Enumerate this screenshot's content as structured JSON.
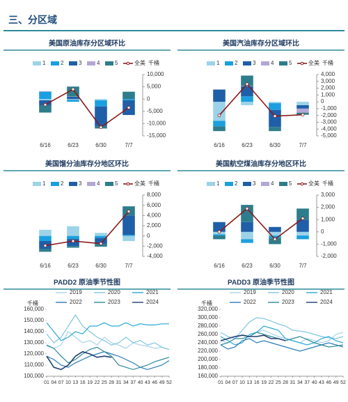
{
  "header": {
    "title": "三、分区域"
  },
  "chart_data": [
    {
      "type": "bar",
      "title": "美国原油库存分区域环比",
      "unit": "千桶",
      "categories": [
        "6/16",
        "6/23",
        "6/30",
        "7/7"
      ],
      "series": [
        {
          "name": "1",
          "color": "#9dd3e8",
          "values": [
            -500,
            -300,
            -500,
            0
          ]
        },
        {
          "name": "2",
          "color": "#1aa0e0",
          "values": [
            3000,
            -800,
            -2500,
            -500
          ]
        },
        {
          "name": "3",
          "color": "#1f5fa8",
          "values": [
            -2000,
            1000,
            -8000,
            -6000
          ]
        },
        {
          "name": "4",
          "color": "#b4a7d6",
          "values": [
            200,
            100,
            0,
            0
          ]
        },
        {
          "name": "5",
          "color": "#2e7d8c",
          "values": [
            -3000,
            4000,
            -1000,
            3000
          ]
        },
        {
          "name": "全美",
          "type": "line",
          "color": "#8b1a1a",
          "values": [
            -2300,
            4000,
            -11500,
            -3500
          ]
        }
      ],
      "ylim": [
        -15000,
        10000
      ],
      "yticks": [
        {
          "value": -15000,
          "label": "-15,000"
        },
        {
          "value": -10000,
          "label": "-10,000"
        },
        {
          "value": -5000,
          "label": "-5,000"
        },
        0,
        {
          "value": 5000,
          "label": "5,000"
        },
        {
          "value": 10000,
          "label": "10,000"
        }
      ]
    },
    {
      "type": "bar",
      "title": "美国汽油库存分区域环比",
      "unit": "千桶",
      "categories": [
        "6/16",
        "6/23",
        "6/30",
        "7/7"
      ],
      "series": [
        {
          "name": "1",
          "color": "#9dd3e8",
          "values": [
            -2800,
            -500,
            -200,
            -500
          ]
        },
        {
          "name": "2",
          "color": "#1aa0e0",
          "values": [
            -800,
            800,
            -1000,
            0
          ]
        },
        {
          "name": "3",
          "color": "#1f5fa8",
          "values": [
            1800,
            1500,
            -2500,
            -500
          ]
        },
        {
          "name": "4",
          "color": "#b4a7d6",
          "values": [
            0,
            50,
            0,
            -600
          ]
        },
        {
          "name": "5",
          "color": "#2e7d8c",
          "values": [
            -700,
            1500,
            -600,
            -300
          ]
        },
        {
          "name": "全美",
          "type": "line",
          "color": "#8b1a1a",
          "values": [
            -2000,
            2600,
            -2100,
            -1900
          ]
        }
      ],
      "ylim": [
        -5000,
        4000
      ],
      "yticks": [
        {
          "value": -5000,
          "label": "-5,000"
        },
        {
          "value": -4000,
          "label": "-4,000"
        },
        {
          "value": -3000,
          "label": "-3,000"
        },
        {
          "value": -2000,
          "label": "-2,000"
        },
        {
          "value": -1000,
          "label": "-1,000"
        },
        0,
        {
          "value": 1000,
          "label": "1,000"
        },
        {
          "value": 2000,
          "label": "2,000"
        },
        {
          "value": 3000,
          "label": "3,000"
        },
        {
          "value": 4000,
          "label": "4,000"
        }
      ]
    },
    {
      "type": "bar",
      "title": "美国馏分油库存分地区环比",
      "unit": "千桶",
      "categories": [
        "6/16",
        "6/23",
        "6/30",
        "7/7"
      ],
      "series": [
        {
          "name": "1",
          "color": "#9dd3e8",
          "values": [
            1200,
            1900,
            600,
            -1000
          ]
        },
        {
          "name": "2",
          "color": "#1aa0e0",
          "values": [
            -1000,
            -600,
            -400,
            200
          ]
        },
        {
          "name": "3",
          "color": "#1f5fa8",
          "values": [
            -1500,
            -1400,
            -1200,
            3800
          ]
        },
        {
          "name": "4",
          "color": "#b4a7d6",
          "values": [
            0,
            0,
            0,
            0
          ]
        },
        {
          "name": "5",
          "color": "#2e7d8c",
          "values": [
            -600,
            -300,
            -500,
            1800
          ]
        },
        {
          "name": "全美",
          "type": "line",
          "color": "#8b1a1a",
          "values": [
            -1900,
            -1000,
            -1500,
            4800
          ]
        }
      ],
      "ylim": [
        -4000,
        8000
      ],
      "yticks": [
        {
          "value": -4000,
          "label": "-4,000"
        },
        {
          "value": -2000,
          "label": "-2,000"
        },
        0,
        {
          "value": 2000,
          "label": "2,000"
        },
        {
          "value": 4000,
          "label": "4,000"
        },
        {
          "value": 6000,
          "label": "6,000"
        },
        {
          "value": 8000,
          "label": "8,000"
        }
      ]
    },
    {
      "type": "bar",
      "title": "美国航空煤油库存分地区环比",
      "unit": "千桶",
      "categories": [
        "6/16",
        "6/23",
        "6/30",
        "7/7"
      ],
      "series": [
        {
          "name": "1",
          "color": "#9dd3e8",
          "values": [
            -200,
            -600,
            -300,
            -300
          ]
        },
        {
          "name": "2",
          "color": "#1aa0e0",
          "values": [
            -100,
            -300,
            -200,
            -300
          ]
        },
        {
          "name": "3",
          "color": "#1f5fa8",
          "values": [
            800,
            800,
            400,
            1000
          ]
        },
        {
          "name": "4",
          "color": "#b4a7d6",
          "values": [
            0,
            0,
            0,
            0
          ]
        },
        {
          "name": "5",
          "color": "#2e7d8c",
          "values": [
            -300,
            1400,
            -500,
            900
          ]
        },
        {
          "name": "全美",
          "type": "line",
          "color": "#8b1a1a",
          "values": [
            0,
            1900,
            -600,
            1100
          ]
        }
      ],
      "ylim": [
        -2000,
        3000
      ],
      "yticks": [
        {
          "value": -2000,
          "label": "-2,000"
        },
        {
          "value": -1000,
          "label": "-1,000"
        },
        0,
        {
          "value": 1000,
          "label": "1,000"
        },
        {
          "value": 2000,
          "label": "2,000"
        },
        {
          "value": 3000,
          "label": "3,000"
        }
      ]
    },
    {
      "type": "line",
      "title": "PADD2 原油季节性图",
      "ylabel": "千桶",
      "x": [
        1,
        4,
        7,
        10,
        13,
        16,
        19,
        22,
        25,
        28,
        31,
        34,
        37,
        40,
        43,
        46,
        49,
        52
      ],
      "series": [
        {
          "name": "2019",
          "color": "#a8d4e8",
          "values": [
            127000,
            125000,
            128000,
            140000,
            135000,
            130000,
            132000,
            128000,
            135000,
            130000,
            128000,
            125000,
            130000,
            128000,
            127000,
            125000,
            126000,
            124000
          ]
        },
        {
          "name": "2020",
          "color": "#7fc6e0",
          "values": [
            138000,
            130000,
            135000,
            145000,
            155000,
            145000,
            140000,
            135000,
            132000,
            128000,
            130000,
            135000,
            130000,
            132000,
            128000,
            130000,
            126000,
            124000
          ]
        },
        {
          "name": "2021",
          "color": "#2aa9d9",
          "values": [
            148000,
            140000,
            132000,
            135000,
            140000,
            138000,
            145000,
            145000,
            148000,
            145000,
            145000,
            148000,
            145000,
            147000,
            146000,
            146000,
            147000,
            147000
          ]
        },
        {
          "name": "2022",
          "color": "#2a7bb5",
          "values": [
            118000,
            115000,
            110000,
            108000,
            112000,
            115000,
            118000,
            120000,
            122000,
            120000,
            118000,
            115000,
            112000,
            108000,
            106000,
            108000,
            110000,
            114000
          ]
        },
        {
          "name": "2023",
          "color": "#2e8a99",
          "values": [
            128000,
            125000,
            118000,
            112000,
            115000,
            120000,
            124000,
            126000,
            122000,
            118000,
            110000,
            108000,
            106000,
            108000,
            110000,
            113000,
            115000,
            117000
          ]
        },
        {
          "name": "2024",
          "color": "#1f3e6e",
          "values": [
            118000,
            108000,
            106000,
            110000,
            118000,
            122000,
            120000,
            117000,
            118000,
            117000,
            null,
            null,
            null,
            null,
            null,
            null,
            null,
            null
          ]
        }
      ],
      "xlim": [
        1,
        52
      ],
      "xticks": [
        {
          "value": 1,
          "label": "01"
        },
        {
          "value": 4,
          "label": "04"
        },
        {
          "value": 7,
          "label": "07"
        },
        10,
        13,
        16,
        19,
        22,
        25,
        28,
        31,
        34,
        37,
        40,
        43,
        46,
        49,
        52
      ],
      "ylim": [
        100000,
        160000
      ],
      "yticks": [
        {
          "value": 100000,
          "label": "100,000"
        },
        {
          "value": 110000,
          "label": "110,000"
        },
        {
          "value": 120000,
          "label": "120,000"
        },
        {
          "value": 130000,
          "label": "130,000"
        },
        {
          "value": 140000,
          "label": "140,000"
        },
        {
          "value": 150000,
          "label": "150,000"
        },
        {
          "value": 160000,
          "label": "160,000"
        }
      ]
    },
    {
      "type": "line",
      "title": "PADD3 原油季节性图",
      "ylabel": "千桶",
      "x": [
        1,
        4,
        7,
        10,
        13,
        16,
        19,
        22,
        25,
        28,
        31,
        34,
        37,
        40,
        43,
        46,
        49,
        52
      ],
      "series": [
        {
          "name": "2019",
          "color": "#a8d4e8",
          "values": [
            245000,
            240000,
            250000,
            260000,
            255000,
            265000,
            270000,
            262000,
            255000,
            250000,
            245000,
            240000,
            250000,
            245000,
            240000,
            245000,
            260000,
            265000
          ]
        },
        {
          "name": "2020",
          "color": "#7fc6e0",
          "values": [
            265000,
            255000,
            250000,
            270000,
            290000,
            300000,
            298000,
            292000,
            285000,
            280000,
            270000,
            268000,
            265000,
            260000,
            255000,
            252000,
            250000,
            255000
          ]
        },
        {
          "name": "2021",
          "color": "#2aa9d9",
          "values": [
            255000,
            245000,
            235000,
            240000,
            260000,
            265000,
            280000,
            275000,
            270000,
            250000,
            245000,
            240000,
            235000,
            240000,
            250000,
            255000,
            245000,
            240000
          ]
        },
        {
          "name": "2022",
          "color": "#2a7bb5",
          "values": [
            235000,
            225000,
            230000,
            245000,
            250000,
            240000,
            245000,
            240000,
            235000,
            230000,
            225000,
            220000,
            225000,
            230000,
            235000,
            240000,
            235000,
            230000
          ]
        },
        {
          "name": "2023",
          "color": "#2e8a99",
          "values": [
            235000,
            240000,
            250000,
            250000,
            255000,
            265000,
            260000,
            255000,
            250000,
            245000,
            250000,
            255000,
            248000,
            240000,
            235000,
            230000,
            232000,
            235000
          ]
        },
        {
          "name": "2024",
          "color": "#1f3e6e",
          "values": [
            245000,
            250000,
            255000,
            258000,
            255000,
            255000,
            258000,
            250000,
            250000,
            245000,
            null,
            null,
            null,
            null,
            null,
            null,
            null,
            null
          ]
        }
      ],
      "xlim": [
        1,
        52
      ],
      "xticks": [
        {
          "value": 1,
          "label": "01"
        },
        {
          "value": 4,
          "label": "04"
        },
        {
          "value": 7,
          "label": "07"
        },
        10,
        13,
        16,
        19,
        22,
        25,
        28,
        31,
        34,
        37,
        40,
        43,
        46,
        49,
        52
      ],
      "ylim": [
        160000,
        320000
      ],
      "yticks": [
        {
          "value": 160000,
          "label": "160,000"
        },
        {
          "value": 180000,
          "label": "180,000"
        },
        {
          "value": 200000,
          "label": "200,000"
        },
        {
          "value": 220000,
          "label": "220,000"
        },
        {
          "value": 240000,
          "label": "240,000"
        },
        {
          "value": 260000,
          "label": "260,000"
        },
        {
          "value": 280000,
          "label": "280,000"
        },
        {
          "value": 300000,
          "label": "300,000"
        },
        {
          "value": 320000,
          "label": "320,000"
        }
      ]
    }
  ]
}
